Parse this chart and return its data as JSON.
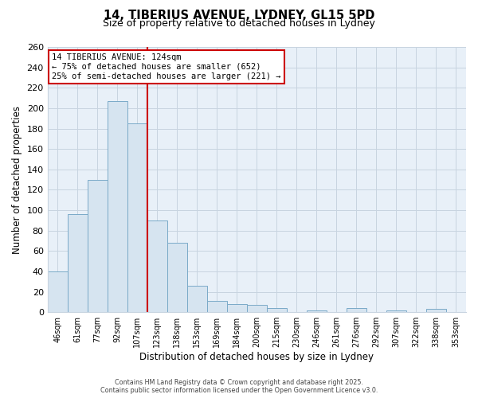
{
  "title": "14, TIBERIUS AVENUE, LYDNEY, GL15 5PD",
  "subtitle": "Size of property relative to detached houses in Lydney",
  "xlabel": "Distribution of detached houses by size in Lydney",
  "ylabel": "Number of detached properties",
  "bar_labels": [
    "46sqm",
    "61sqm",
    "77sqm",
    "92sqm",
    "107sqm",
    "123sqm",
    "138sqm",
    "153sqm",
    "169sqm",
    "184sqm",
    "200sqm",
    "215sqm",
    "230sqm",
    "246sqm",
    "261sqm",
    "276sqm",
    "292sqm",
    "307sqm",
    "322sqm",
    "338sqm",
    "353sqm"
  ],
  "bar_values": [
    40,
    96,
    130,
    207,
    185,
    90,
    68,
    26,
    11,
    8,
    7,
    4,
    0,
    2,
    0,
    4,
    0,
    2,
    0,
    3,
    0
  ],
  "bar_color": "#d6e4f0",
  "bar_edge_color": "#7aaac8",
  "vline_color": "#cc0000",
  "annotation_title": "14 TIBERIUS AVENUE: 124sqm",
  "annotation_line1": "← 75% of detached houses are smaller (652)",
  "annotation_line2": "25% of semi-detached houses are larger (221) →",
  "annotation_box_edge": "#cc0000",
  "ylim": [
    0,
    260
  ],
  "yticks": [
    0,
    20,
    40,
    60,
    80,
    100,
    120,
    140,
    160,
    180,
    200,
    220,
    240,
    260
  ],
  "footer_line1": "Contains HM Land Registry data © Crown copyright and database right 2025.",
  "footer_line2": "Contains public sector information licensed under the Open Government Licence v3.0.",
  "plot_bg_color": "#e8f0f8",
  "fig_bg_color": "#ffffff",
  "grid_color": "#c8d4e0"
}
